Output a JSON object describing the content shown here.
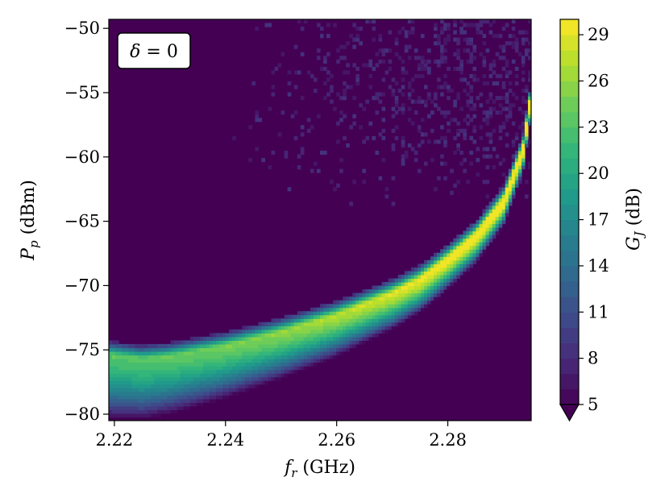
{
  "chart_data": {
    "type": "heatmap",
    "title": "",
    "xlabel": "f_r (GHz)",
    "ylabel": "P_p (dBm)",
    "xlabel_parts": {
      "symbol": "f",
      "sub": "r",
      "unit": " (GHz)"
    },
    "ylabel_parts": {
      "symbol": "P",
      "sub": "p",
      "unit": " (dBm)"
    },
    "xlim": [
      2.219,
      2.295
    ],
    "ylim": [
      -80.5,
      -49.3
    ],
    "xticks": [
      2.22,
      2.24,
      2.26,
      2.28
    ],
    "xtick_labels": [
      "2.22",
      "2.24",
      "2.26",
      "2.28"
    ],
    "yticks": [
      -50,
      -55,
      -60,
      -65,
      -70,
      -75,
      -80
    ],
    "ytick_labels": [
      "−50",
      "−55",
      "−60",
      "−65",
      "−70",
      "−75",
      "−80"
    ],
    "annotation": "δ = 0",
    "annotation_parts": {
      "symbol": "δ",
      "rest": " = 0"
    },
    "colorbar": {
      "label": "G_J (dB)",
      "label_parts": {
        "symbol": "G",
        "sub": "J",
        "unit": " (dB)"
      },
      "vmin": 5,
      "vmax": 30,
      "extend": "min",
      "ticks": [
        5,
        8,
        11,
        14,
        17,
        20,
        23,
        26,
        29
      ],
      "tick_labels": [
        "5",
        "8",
        "11",
        "14",
        "17",
        "20",
        "23",
        "26",
        "29"
      ],
      "colormap": "viridis",
      "levels": 25
    },
    "z_min_value": 5,
    "z_max_value": 30,
    "ridge_curve": {
      "x": [
        2.219,
        2.225,
        2.23,
        2.24,
        2.25,
        2.26,
        2.27,
        2.275,
        2.28,
        2.285,
        2.29,
        2.2935,
        2.295
      ],
      "y": [
        -75.5,
        -75.8,
        -75.6,
        -74.8,
        -73.7,
        -72.4,
        -70.7,
        -69.6,
        -68.0,
        -66.2,
        -63.5,
        -59.5,
        -55.2
      ]
    },
    "background_value": 5,
    "grid": false,
    "legend": "none"
  }
}
